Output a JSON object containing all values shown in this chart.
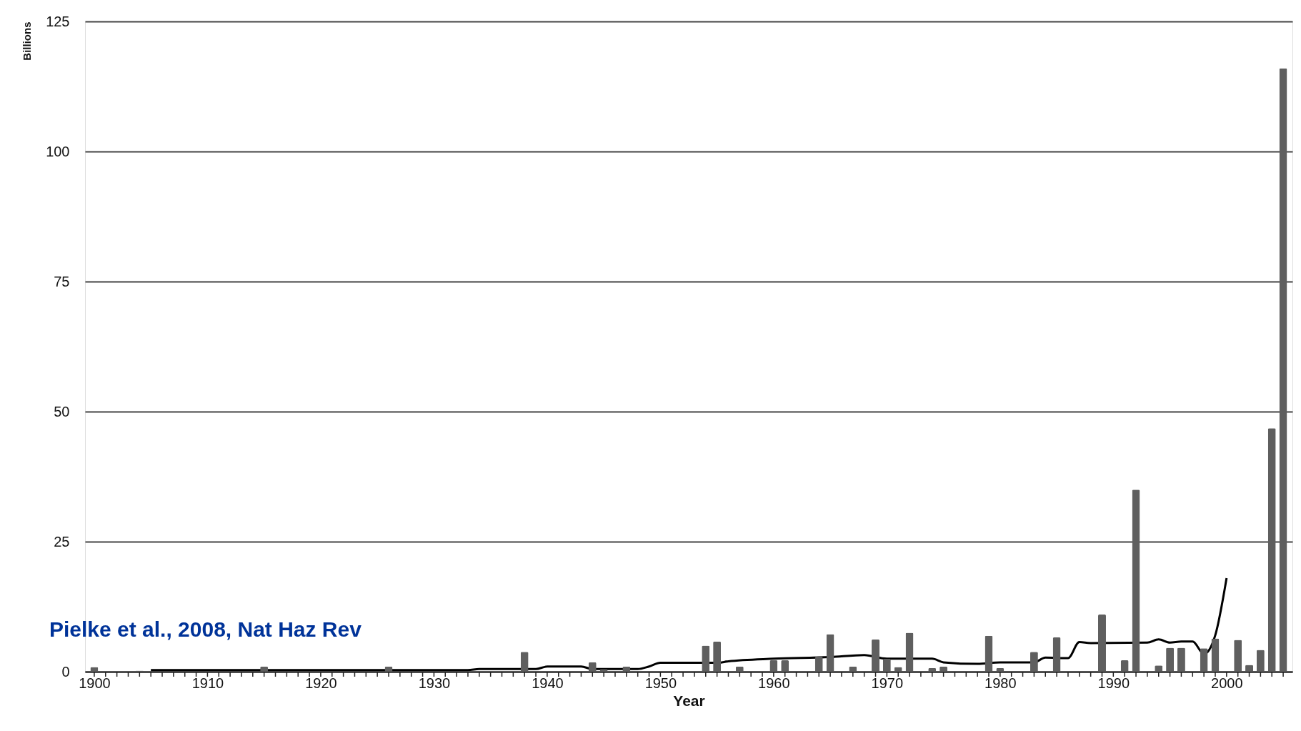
{
  "chart_data": {
    "type": "bar",
    "xlabel": "Year",
    "ylabel": "Billions",
    "annotations": [
      "Pielke et al., 2008, Nat Haz Rev"
    ],
    "x": [
      1900,
      1904,
      1915,
      1926,
      1938,
      1944,
      1945,
      1947,
      1954,
      1955,
      1957,
      1960,
      1961,
      1964,
      1965,
      1967,
      1969,
      1970,
      1971,
      1972,
      1974,
      1975,
      1979,
      1980,
      1983,
      1985,
      1989,
      1991,
      1992,
      1994,
      1995,
      1996,
      1998,
      1999,
      2001,
      2002,
      2003,
      2004,
      2005
    ],
    "series": [
      {
        "color": "#5f5f5f",
        "values": [
          0.9,
          0.2,
          1.0,
          1.0,
          3.8,
          1.8,
          0.5,
          1.0,
          5.0,
          5.8,
          1.0,
          2.2,
          2.2,
          2.9,
          7.2,
          1.0,
          6.2,
          2.5,
          0.9,
          7.5,
          0.7,
          1.0,
          6.9,
          0.7,
          3.8,
          6.6,
          11.0,
          2.2,
          35.0,
          1.2,
          4.6,
          4.6,
          4.5,
          6.4,
          6.1,
          1.3,
          4.2,
          46.8,
          116.0
        ]
      },
      {
        "type": "line",
        "color": "#000000",
        "x": [
          1905,
          1933,
          1934,
          1939,
          1940,
          1943,
          1944,
          1948,
          1949,
          1950,
          1955,
          1956,
          1960,
          1965,
          1968,
          1970,
          1974,
          1975,
          1978,
          1980,
          1983,
          1984,
          1986,
          1987,
          1988,
          1993,
          1994,
          1995,
          1996,
          1997,
          1998,
          1999,
          2000
        ],
        "values": [
          0.3,
          0.3,
          0.5,
          0.5,
          1.0,
          1.0,
          0.5,
          0.5,
          1.0,
          1.7,
          1.7,
          2.0,
          2.5,
          2.8,
          3.2,
          2.5,
          2.5,
          1.8,
          1.5,
          1.8,
          1.8,
          2.7,
          2.6,
          5.7,
          5.5,
          5.6,
          6.2,
          5.6,
          5.8,
          5.8,
          3.4,
          7.0,
          18.0
        ]
      }
    ],
    "xlim": [
      1899.5,
      2005.5
    ],
    "xticks": [
      1900,
      {
        "value": 1901,
        "label": null
      },
      {
        "value": 1902,
        "label": null
      },
      {
        "value": 1903,
        "label": null
      },
      {
        "value": 1904,
        "label": null
      },
      {
        "value": 1905,
        "label": null
      },
      {
        "value": 1906,
        "label": null
      },
      {
        "value": 1907,
        "label": null
      },
      {
        "value": 1908,
        "label": null
      },
      {
        "value": 1909,
        "label": null
      },
      1910,
      {
        "value": 1911,
        "label": null
      },
      {
        "value": 1912,
        "label": null
      },
      {
        "value": 1913,
        "label": null
      },
      {
        "value": 1914,
        "label": null
      },
      {
        "value": 1915,
        "label": null
      },
      {
        "value": 1916,
        "label": null
      },
      {
        "value": 1917,
        "label": null
      },
      {
        "value": 1918,
        "label": null
      },
      {
        "value": 1919,
        "label": null
      },
      1920,
      {
        "value": 1921,
        "label": null
      },
      {
        "value": 1922,
        "label": null
      },
      {
        "value": 1923,
        "label": null
      },
      {
        "value": 1924,
        "label": null
      },
      {
        "value": 1925,
        "label": null
      },
      {
        "value": 1926,
        "label": null
      },
      {
        "value": 1927,
        "label": null
      },
      {
        "value": 1928,
        "label": null
      },
      {
        "value": 1929,
        "label": null
      },
      1930,
      {
        "value": 1931,
        "label": null
      },
      {
        "value": 1932,
        "label": null
      },
      {
        "value": 1933,
        "label": null
      },
      {
        "value": 1934,
        "label": null
      },
      {
        "value": 1935,
        "label": null
      },
      {
        "value": 1936,
        "label": null
      },
      {
        "value": 1937,
        "label": null
      },
      {
        "value": 1938,
        "label": null
      },
      {
        "value": 1939,
        "label": null
      },
      1940,
      {
        "value": 1941,
        "label": null
      },
      {
        "value": 1942,
        "label": null
      },
      {
        "value": 1943,
        "label": null
      },
      {
        "value": 1944,
        "label": null
      },
      {
        "value": 1945,
        "label": null
      },
      {
        "value": 1946,
        "label": null
      },
      {
        "value": 1947,
        "label": null
      },
      {
        "value": 1948,
        "label": null
      },
      {
        "value": 1949,
        "label": null
      },
      1950,
      {
        "value": 1951,
        "label": null
      },
      {
        "value": 1952,
        "label": null
      },
      {
        "value": 1953,
        "label": null
      },
      {
        "value": 1954,
        "label": null
      },
      {
        "value": 1955,
        "label": null
      },
      {
        "value": 1956,
        "label": null
      },
      {
        "value": 1957,
        "label": null
      },
      {
        "value": 1958,
        "label": null
      },
      {
        "value": 1959,
        "label": null
      },
      1960,
      {
        "value": 1961,
        "label": null
      },
      {
        "value": 1962,
        "label": null
      },
      {
        "value": 1963,
        "label": null
      },
      {
        "value": 1964,
        "label": null
      },
      {
        "value": 1965,
        "label": null
      },
      {
        "value": 1966,
        "label": null
      },
      {
        "value": 1967,
        "label": null
      },
      {
        "value": 1968,
        "label": null
      },
      {
        "value": 1969,
        "label": null
      },
      1970,
      {
        "value": 1971,
        "label": null
      },
      {
        "value": 1972,
        "label": null
      },
      {
        "value": 1973,
        "label": null
      },
      {
        "value": 1974,
        "label": null
      },
      {
        "value": 1975,
        "label": null
      },
      {
        "value": 1976,
        "label": null
      },
      {
        "value": 1977,
        "label": null
      },
      {
        "value": 1978,
        "label": null
      },
      {
        "value": 1979,
        "label": null
      },
      1980,
      {
        "value": 1981,
        "label": null
      },
      {
        "value": 1982,
        "label": null
      },
      {
        "value": 1983,
        "label": null
      },
      {
        "value": 1984,
        "label": null
      },
      {
        "value": 1985,
        "label": null
      },
      {
        "value": 1986,
        "label": null
      },
      {
        "value": 1987,
        "label": null
      },
      {
        "value": 1988,
        "label": null
      },
      {
        "value": 1989,
        "label": null
      },
      1990,
      {
        "value": 1991,
        "label": null
      },
      {
        "value": 1992,
        "label": null
      },
      {
        "value": 1993,
        "label": null
      },
      {
        "value": 1994,
        "label": null
      },
      {
        "value": 1995,
        "label": null
      },
      {
        "value": 1996,
        "label": null
      },
      {
        "value": 1997,
        "label": null
      },
      {
        "value": 1998,
        "label": null
      },
      {
        "value": 1999,
        "label": null
      },
      2000,
      {
        "value": 2001,
        "label": null
      },
      {
        "value": 2002,
        "label": null
      },
      {
        "value": 2003,
        "label": null
      },
      {
        "value": 2004,
        "label": null
      },
      {
        "value": 2005,
        "label": null
      }
    ],
    "ylim": [
      0,
      125
    ],
    "yticks": [
      0,
      25,
      50,
      75,
      100,
      125
    ],
    "grid": "y",
    "legend": false
  }
}
